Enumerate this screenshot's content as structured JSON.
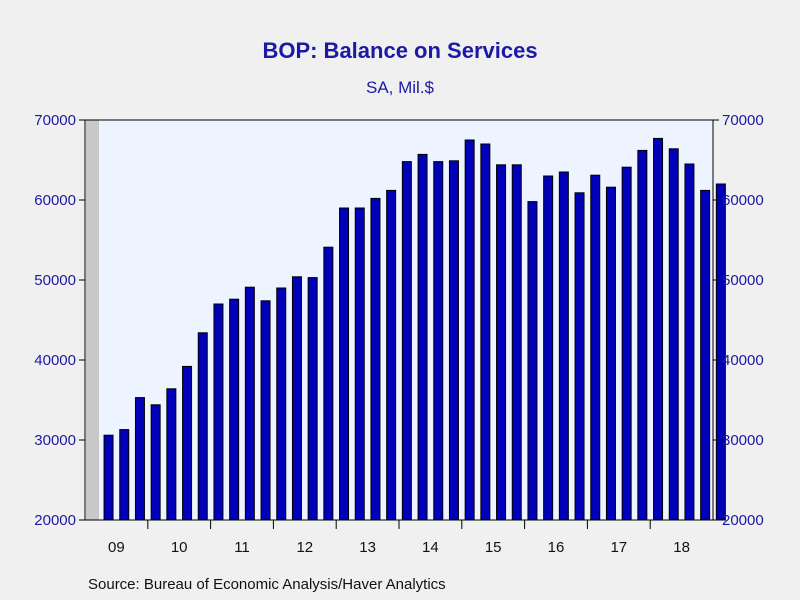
{
  "header": {
    "title": "BOP: Balance on Services",
    "subtitle": "SA, Mil.$"
  },
  "footer": {
    "source": "Source:  Bureau of Economic Analysis/Haver Analytics"
  },
  "colors": {
    "background": "#f0f0f0",
    "plot_background": "#eef4ff",
    "bar_fill": "#0000b8",
    "bar_stroke": "#000000",
    "text_blue": "#1a1aa6",
    "recession_shade": "#c8c8c8"
  },
  "chart_data": {
    "type": "bar",
    "title": "BOP: Balance on Services",
    "subtitle": "SA, Mil.$",
    "ylim": [
      20000,
      70000
    ],
    "y_ticks": [
      20000,
      30000,
      40000,
      50000,
      60000,
      70000
    ],
    "y_tick_labels": [
      "20000",
      "30000",
      "40000",
      "50000",
      "60000",
      "70000"
    ],
    "dual_y_axis": true,
    "x_year_labels": [
      "09",
      "10",
      "11",
      "12",
      "13",
      "14",
      "15",
      "16",
      "17",
      "18"
    ],
    "categories": [
      "09Q2",
      "09Q3",
      "09Q4",
      "10Q1",
      "10Q2",
      "10Q3",
      "10Q4",
      "11Q1",
      "11Q2",
      "11Q3",
      "11Q4",
      "12Q1",
      "12Q2",
      "12Q3",
      "12Q4",
      "13Q1",
      "13Q2",
      "13Q3",
      "13Q4",
      "14Q1",
      "14Q2",
      "14Q3",
      "14Q4",
      "15Q1",
      "15Q2",
      "15Q3",
      "15Q4",
      "16Q1",
      "16Q2",
      "16Q3",
      "16Q4",
      "17Q1",
      "17Q2",
      "17Q3",
      "17Q4",
      "18Q1",
      "18Q2",
      "18Q3",
      "18Q4",
      "19Q1"
    ],
    "values": [
      30600,
      31300,
      35300,
      34400,
      36400,
      39200,
      43400,
      47000,
      47600,
      49100,
      47400,
      49000,
      50400,
      50300,
      54100,
      59000,
      59000,
      60200,
      61200,
      64800,
      65700,
      64800,
      64900,
      67500,
      67000,
      64400,
      64400,
      59800,
      63000,
      63500,
      60900,
      63100,
      61600,
      64100,
      66200,
      67700,
      66400,
      64500,
      61200,
      62000
    ],
    "recession_shading": {
      "start": "09Q1",
      "end": "09Q2"
    },
    "grid": false,
    "legend": "none"
  }
}
